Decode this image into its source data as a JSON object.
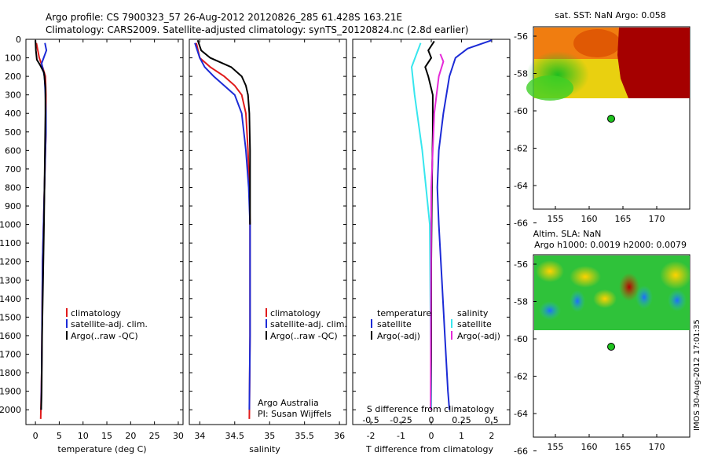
{
  "header": {
    "line1": "Argo profile: CS 7900323_57 26-Aug-2012 20120826_285 61.428S 163.21E",
    "line2": "Climatology: CARS2009. Satellite-adjusted climatology: synTS_20120824.nc (2.8d earlier)"
  },
  "colors": {
    "red": "#e01b1b",
    "blue": "#1c2bd6",
    "black": "#000000",
    "cyan": "#37e6ee",
    "magenta": "#e52ad8"
  },
  "depth_ticks": [
    "0",
    "100",
    "200",
    "300",
    "400",
    "500",
    "600",
    "700",
    "800",
    "900",
    "1000",
    "1100",
    "1200",
    "1300",
    "1400",
    "1500",
    "1600",
    "1700",
    "1800",
    "1900",
    "2000"
  ],
  "panels": {
    "temperature": {
      "xlabel": "temperature (deg C)",
      "xticks": [
        "0",
        "5",
        "10",
        "15",
        "20",
        "25",
        "30"
      ],
      "legend": [
        "climatology",
        "satellite-adj. clim.",
        "Argo(..raw -QC)"
      ]
    },
    "salinity": {
      "xlabel": "salinity",
      "xticks": [
        "34",
        "34.5",
        "35",
        "35.5",
        "36"
      ],
      "legend": [
        "climatology",
        "satellite-adj. clim.",
        "Argo(..raw -QC)"
      ],
      "credit1": "Argo Australia",
      "credit2": "PI: Susan Wijffels"
    },
    "difference": {
      "xlabel": "T difference from climatology",
      "xlabel_top": "S difference from climatology",
      "xticks_T": [
        "-2",
        "-1",
        "0",
        "1",
        "2"
      ],
      "xticks_S": [
        "-0.5",
        "-0.25",
        "0",
        "0.25",
        "0.5"
      ],
      "legend_left_title": "temperature",
      "legend_left": [
        "satellite",
        "Argo(-adj)"
      ],
      "legend_right_title": "salinity",
      "legend_right": [
        "satellite",
        "Argo(-adj)"
      ]
    }
  },
  "maps": {
    "sst": {
      "title": "sat. SST: NaN Argo: 0.058"
    },
    "sla": {
      "title1": "Altim. SLA: NaN",
      "title2": "Argo h1000: 0.0019 h2000: 0.0079"
    },
    "yticks": [
      "-56",
      "-58",
      "-60",
      "-62",
      "-64",
      "-66"
    ],
    "xticks": [
      "155",
      "160",
      "165",
      "170"
    ]
  },
  "stamp": "IMOS 30-Aug-2012 17:01:35",
  "chart_data": [
    {
      "type": "line",
      "ylabel": "",
      "xlabel": "temperature (deg C)",
      "xlim": [
        -2,
        31
      ],
      "ylim": [
        2080,
        0
      ],
      "series": [
        {
          "name": "climatology",
          "x": [
            0.2,
            0.8,
            1.5,
            2.1,
            2.2,
            2.2,
            2.2,
            2.1,
            2.0,
            1.9,
            1.8,
            1.7,
            1.5,
            1.4,
            1.3,
            1.1
          ],
          "y": [
            20,
            100,
            150,
            200,
            300,
            400,
            500,
            600,
            700,
            800,
            900,
            1000,
            1200,
            1500,
            1800,
            2050
          ]
        },
        {
          "name": "satellite-adj. clim.",
          "x": [
            2.0,
            2.3,
            1.3,
            1.9,
            2.1,
            2.2,
            2.2,
            2.1,
            2.0,
            1.9,
            1.8,
            1.7,
            1.5,
            1.4,
            1.3,
            1.2
          ],
          "y": [
            20,
            60,
            130,
            200,
            300,
            400,
            500,
            600,
            700,
            800,
            900,
            1000,
            1200,
            1500,
            1800,
            2000
          ]
        },
        {
          "name": "Argo(..raw -QC)",
          "x": [
            0.0,
            0.1,
            0.3,
            1.0,
            1.8,
            2.1,
            2.1,
            2.0,
            1.9,
            1.8,
            1.6,
            1.4,
            1.3,
            1.2
          ],
          "y": [
            5,
            60,
            110,
            140,
            180,
            260,
            400,
            600,
            800,
            1000,
            1300,
            1600,
            1900,
            2000
          ]
        }
      ]
    },
    {
      "type": "line",
      "xlabel": "salinity",
      "xlim": [
        33.85,
        36.1
      ],
      "ylim": [
        2080,
        0
      ],
      "series": [
        {
          "name": "climatology",
          "x": [
            33.95,
            34.0,
            34.15,
            34.35,
            34.5,
            34.6,
            34.66,
            34.69,
            34.71,
            34.72,
            34.72,
            34.72,
            34.71
          ],
          "y": [
            20,
            100,
            150,
            200,
            250,
            300,
            400,
            600,
            800,
            1000,
            1300,
            1600,
            2050
          ]
        },
        {
          "name": "satellite-adj. clim.",
          "x": [
            33.93,
            34.0,
            34.07,
            34.2,
            34.35,
            34.5,
            34.6,
            34.66,
            34.7,
            34.72,
            34.72,
            34.72,
            34.71
          ],
          "y": [
            20,
            100,
            150,
            200,
            250,
            300,
            400,
            600,
            800,
            1000,
            1300,
            1600,
            2000
          ]
        },
        {
          "name": "Argo(..raw -QC)",
          "x": [
            33.97,
            34.02,
            34.15,
            34.45,
            34.6,
            34.66,
            34.69,
            34.71,
            34.72,
            34.72,
            34.72,
            34.72
          ],
          "y": [
            5,
            60,
            100,
            150,
            200,
            250,
            300,
            400,
            600,
            800,
            1000,
            1000
          ]
        }
      ]
    },
    {
      "type": "line",
      "xlabel": "T difference from climatology",
      "xlim": [
        -2.6,
        2.6
      ],
      "ylim": [
        2080,
        0
      ],
      "series": [
        {
          "name": "temperature satellite",
          "x": [
            2.0,
            1.2,
            0.8,
            0.6,
            0.4,
            0.25,
            0.2,
            0.25,
            0.35,
            0.45,
            0.55,
            0.6
          ],
          "y": [
            5,
            50,
            100,
            200,
            400,
            600,
            800,
            1000,
            1300,
            1600,
            1900,
            2000
          ]
        },
        {
          "name": "temperature Argo(-adj)",
          "x": [
            0.1,
            -0.1,
            0.0,
            -0.2,
            -0.1,
            0.05,
            0.05,
            0.02,
            0.0,
            0.0,
            0.0
          ],
          "y": [
            10,
            60,
            100,
            150,
            200,
            300,
            500,
            800,
            1200,
            1600,
            2000
          ]
        },
        {
          "name": "salinity satellite",
          "x": [
            -0.35,
            -0.65,
            -0.55,
            -0.3,
            -0.05,
            0.0
          ],
          "y": [
            20,
            150,
            300,
            600,
            1000,
            2000
          ]
        },
        {
          "name": "salinity Argo(-adj)",
          "x": [
            0.3,
            0.4,
            0.25,
            0.1,
            0.0,
            -0.02
          ],
          "y": [
            80,
            120,
            200,
            400,
            800,
            2000
          ]
        }
      ]
    }
  ]
}
